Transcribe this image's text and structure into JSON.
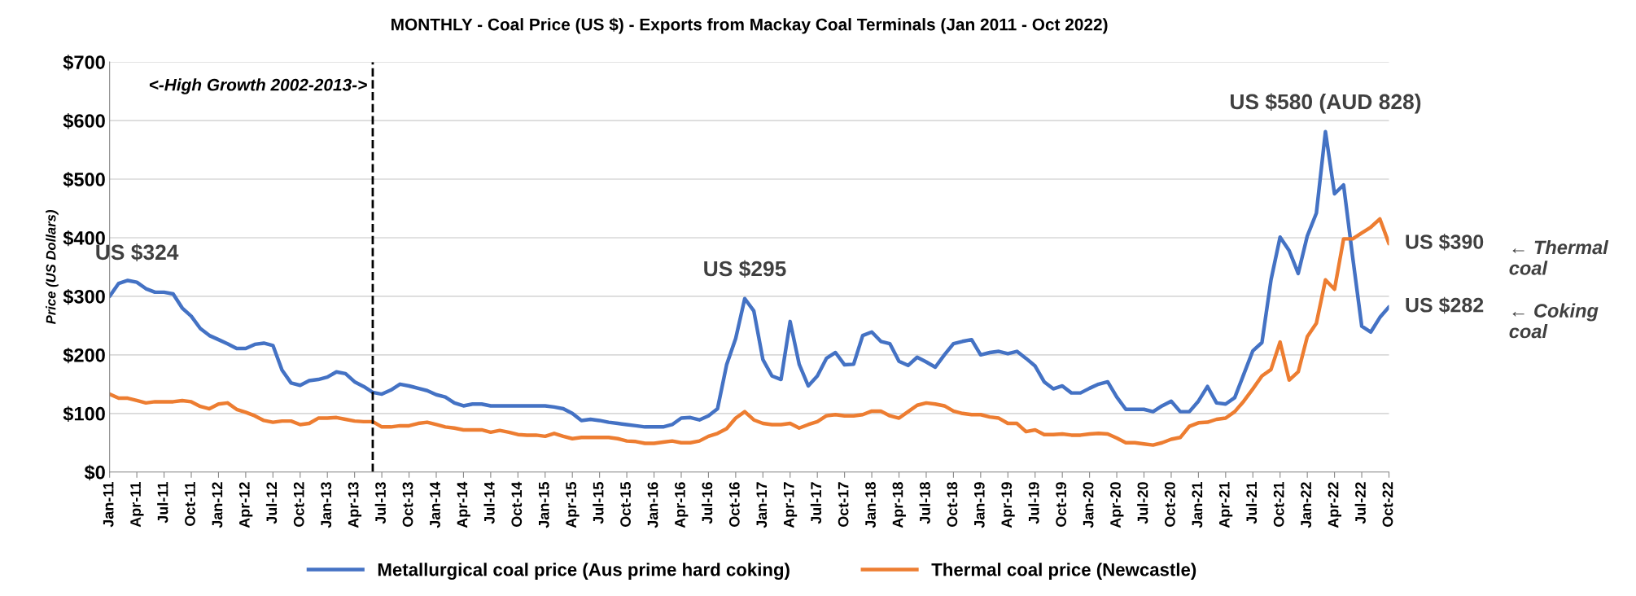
{
  "chart_data": {
    "type": "line",
    "title": "MONTHLY - Coal Price (US $) - Exports from Mackay Coal Terminals (Jan 2011 - Oct 2022)",
    "ylabel": "Price (US Dollars)",
    "x": [
      "2011-01",
      "2011-02",
      "2011-03",
      "2011-04",
      "2011-05",
      "2011-06",
      "2011-07",
      "2011-08",
      "2011-09",
      "2011-10",
      "2011-11",
      "2011-12",
      "2012-01",
      "2012-02",
      "2012-03",
      "2012-04",
      "2012-05",
      "2012-06",
      "2012-07",
      "2012-08",
      "2012-09",
      "2012-10",
      "2012-11",
      "2012-12",
      "2013-01",
      "2013-02",
      "2013-03",
      "2013-04",
      "2013-05",
      "2013-06",
      "2013-07",
      "2013-08",
      "2013-09",
      "2013-10",
      "2013-11",
      "2013-12",
      "2014-01",
      "2014-02",
      "2014-03",
      "2014-04",
      "2014-05",
      "2014-06",
      "2014-07",
      "2014-08",
      "2014-09",
      "2014-10",
      "2014-11",
      "2014-12",
      "2015-01",
      "2015-02",
      "2015-03",
      "2015-04",
      "2015-05",
      "2015-06",
      "2015-07",
      "2015-08",
      "2015-09",
      "2015-10",
      "2015-11",
      "2015-12",
      "2016-01",
      "2016-02",
      "2016-03",
      "2016-04",
      "2016-05",
      "2016-06",
      "2016-07",
      "2016-08",
      "2016-09",
      "2016-10",
      "2016-11",
      "2016-12",
      "2017-01",
      "2017-02",
      "2017-03",
      "2017-04",
      "2017-05",
      "2017-06",
      "2017-07",
      "2017-08",
      "2017-09",
      "2017-10",
      "2017-11",
      "2017-12",
      "2018-01",
      "2018-02",
      "2018-03",
      "2018-04",
      "2018-05",
      "2018-06",
      "2018-07",
      "2018-08",
      "2018-09",
      "2018-10",
      "2018-11",
      "2018-12",
      "2019-01",
      "2019-02",
      "2019-03",
      "2019-04",
      "2019-05",
      "2019-06",
      "2019-07",
      "2019-08",
      "2019-09",
      "2019-10",
      "2019-11",
      "2019-12",
      "2020-01",
      "2020-02",
      "2020-03",
      "2020-04",
      "2020-05",
      "2020-06",
      "2020-07",
      "2020-08",
      "2020-09",
      "2020-10",
      "2020-11",
      "2020-12",
      "2021-01",
      "2021-02",
      "2021-03",
      "2021-04",
      "2021-05",
      "2021-06",
      "2021-07",
      "2021-08",
      "2021-09",
      "2021-10",
      "2021-11",
      "2021-12",
      "2022-01",
      "2022-02",
      "2022-03",
      "2022-04",
      "2022-05",
      "2022-06",
      "2022-07",
      "2022-08",
      "2022-09",
      "2022-10"
    ],
    "series": [
      {
        "name": "Metallurgical coal price (Aus prime hard coking)",
        "color": "#4472c4",
        "values": [
          300,
          322,
          327,
          324,
          313,
          307,
          307,
          304,
          280,
          266,
          245,
          233,
          226,
          219,
          211,
          211,
          218,
          220,
          216,
          174,
          152,
          148,
          156,
          158,
          162,
          171,
          168,
          154,
          146,
          136,
          133,
          140,
          150,
          147,
          143,
          139,
          132,
          128,
          118,
          113,
          116,
          116,
          113,
          113,
          113,
          113,
          113,
          113,
          113,
          111,
          108,
          100,
          88,
          90,
          88,
          85,
          83,
          81,
          79,
          77,
          77,
          77,
          81,
          92,
          93,
          89,
          96,
          108,
          183,
          228,
          296,
          275,
          192,
          164,
          158,
          257,
          184,
          147,
          164,
          194,
          204,
          183,
          184,
          233,
          239,
          223,
          219,
          189,
          182,
          196,
          188,
          179,
          200,
          219,
          223,
          226,
          200,
          204,
          206,
          202,
          206,
          194,
          181,
          154,
          142,
          147,
          135,
          135,
          143,
          150,
          154,
          128,
          107,
          107,
          107,
          103,
          113,
          121,
          103,
          103,
          121,
          146,
          118,
          116,
          127,
          167,
          207,
          221,
          328,
          401,
          378,
          339,
          403,
          442,
          581,
          475,
          490,
          367,
          249,
          239,
          264,
          282
        ]
      },
      {
        "name": "Thermal coal price (Newcastle)",
        "color": "#ed7d31",
        "values": [
          133,
          126,
          126,
          122,
          118,
          120,
          120,
          120,
          122,
          120,
          112,
          108,
          116,
          118,
          107,
          102,
          96,
          88,
          85,
          87,
          87,
          81,
          83,
          92,
          92,
          93,
          90,
          87,
          86,
          86,
          77,
          77,
          79,
          79,
          83,
          85,
          81,
          77,
          75,
          72,
          72,
          72,
          68,
          71,
          68,
          64,
          63,
          63,
          61,
          66,
          61,
          57,
          59,
          59,
          59,
          59,
          57,
          53,
          52,
          49,
          49,
          51,
          53,
          50,
          50,
          53,
          61,
          66,
          74,
          92,
          103,
          89,
          83,
          81,
          81,
          83,
          75,
          81,
          86,
          96,
          98,
          96,
          96,
          98,
          104,
          104,
          96,
          92,
          103,
          114,
          118,
          116,
          113,
          104,
          100,
          98,
          98,
          94,
          92,
          83,
          83,
          69,
          72,
          64,
          64,
          65,
          63,
          63,
          65,
          66,
          65,
          58,
          50,
          50,
          48,
          46,
          50,
          56,
          59,
          78,
          84,
          85,
          90,
          92,
          103,
          121,
          142,
          164,
          175,
          222,
          157,
          171,
          231,
          254,
          328,
          312,
          398,
          398,
          408,
          418,
          432,
          390
        ]
      }
    ],
    "xlim": [
      "2011-01",
      "2022-10"
    ],
    "xticks": [
      {
        "value": "2011-01",
        "label": "Jan-11"
      },
      {
        "value": "2011-04",
        "label": "Apr-11"
      },
      {
        "value": "2011-07",
        "label": "Jul-11"
      },
      {
        "value": "2011-10",
        "label": "Oct-11"
      },
      {
        "value": "2012-01",
        "label": "Jan-12"
      },
      {
        "value": "2012-04",
        "label": "Apr-12"
      },
      {
        "value": "2012-07",
        "label": "Jul-12"
      },
      {
        "value": "2012-10",
        "label": "Oct-12"
      },
      {
        "value": "2013-01",
        "label": "Jan-13"
      },
      {
        "value": "2013-04",
        "label": "Apr-13"
      },
      {
        "value": "2013-07",
        "label": "Jul-13"
      },
      {
        "value": "2013-10",
        "label": "Oct-13"
      },
      {
        "value": "2014-01",
        "label": "Jan-14"
      },
      {
        "value": "2014-04",
        "label": "Apr-14"
      },
      {
        "value": "2014-07",
        "label": "Jul-14"
      },
      {
        "value": "2014-10",
        "label": "Oct-14"
      },
      {
        "value": "2015-01",
        "label": "Jan-15"
      },
      {
        "value": "2015-04",
        "label": "Apr-15"
      },
      {
        "value": "2015-07",
        "label": "Jul-15"
      },
      {
        "value": "2015-10",
        "label": "Oct-15"
      },
      {
        "value": "2016-01",
        "label": "Jan-16"
      },
      {
        "value": "2016-04",
        "label": "Apr-16"
      },
      {
        "value": "2016-07",
        "label": "Jul-16"
      },
      {
        "value": "2016-10",
        "label": "Oct-16"
      },
      {
        "value": "2017-01",
        "label": "Jan-17"
      },
      {
        "value": "2017-04",
        "label": "Apr-17"
      },
      {
        "value": "2017-07",
        "label": "Jul-17"
      },
      {
        "value": "2017-10",
        "label": "Oct-17"
      },
      {
        "value": "2018-01",
        "label": "Jan-18"
      },
      {
        "value": "2018-04",
        "label": "Apr-18"
      },
      {
        "value": "2018-07",
        "label": "Jul-18"
      },
      {
        "value": "2018-10",
        "label": "Oct-18"
      },
      {
        "value": "2019-01",
        "label": "Jan-19"
      },
      {
        "value": "2019-04",
        "label": "Apr-19"
      },
      {
        "value": "2019-07",
        "label": "Jul-19"
      },
      {
        "value": "2019-10",
        "label": "Oct-19"
      },
      {
        "value": "2020-01",
        "label": "Jan-20"
      },
      {
        "value": "2020-04",
        "label": "Apr-20"
      },
      {
        "value": "2020-07",
        "label": "Jul-20"
      },
      {
        "value": "2020-10",
        "label": "Oct-20"
      },
      {
        "value": "2021-01",
        "label": "Jan-21"
      },
      {
        "value": "2021-04",
        "label": "Apr-21"
      },
      {
        "value": "2021-07",
        "label": "Jul-21"
      },
      {
        "value": "2021-10",
        "label": "Oct-21"
      },
      {
        "value": "2022-01",
        "label": "Jan-22"
      },
      {
        "value": "2022-04",
        "label": "Apr-22"
      },
      {
        "value": "2022-07",
        "label": "Jul-22"
      },
      {
        "value": "2022-10",
        "label": "Oct-22"
      }
    ],
    "ylim": [
      0,
      700
    ],
    "yticks": [
      {
        "value": 0,
        "label": "$0"
      },
      {
        "value": 100,
        "label": "$100"
      },
      {
        "value": 200,
        "label": "$200"
      },
      {
        "value": 300,
        "label": "$300"
      },
      {
        "value": 400,
        "label": "$400"
      },
      {
        "value": 500,
        "label": "$500"
      },
      {
        "value": 600,
        "label": "$600"
      },
      {
        "value": 700,
        "label": "$700"
      }
    ],
    "ref_lines": [
      {
        "axis": "x",
        "value": "2013-06",
        "label": "<-High Growth 2002-2013->",
        "color": "#000000",
        "line_style": "dashed"
      }
    ],
    "annotations": [
      {
        "text": "US $324",
        "x": "2011-04",
        "y": 324
      },
      {
        "text": "US $295",
        "x": "2016-11",
        "y": 296
      },
      {
        "text": "US $580 (AUD 828)",
        "x": "2022-03",
        "y": 581
      },
      {
        "text": "US $390",
        "x": "2022-10",
        "y": 390
      },
      "← Thermal\ncoal",
      {
        "text": "US $282",
        "x": "2022-10",
        "y": 282
      },
      "← Coking\ncoal"
    ],
    "grid": "y",
    "legend": "bottom",
    "marker": "none",
    "line_style": "solid"
  }
}
